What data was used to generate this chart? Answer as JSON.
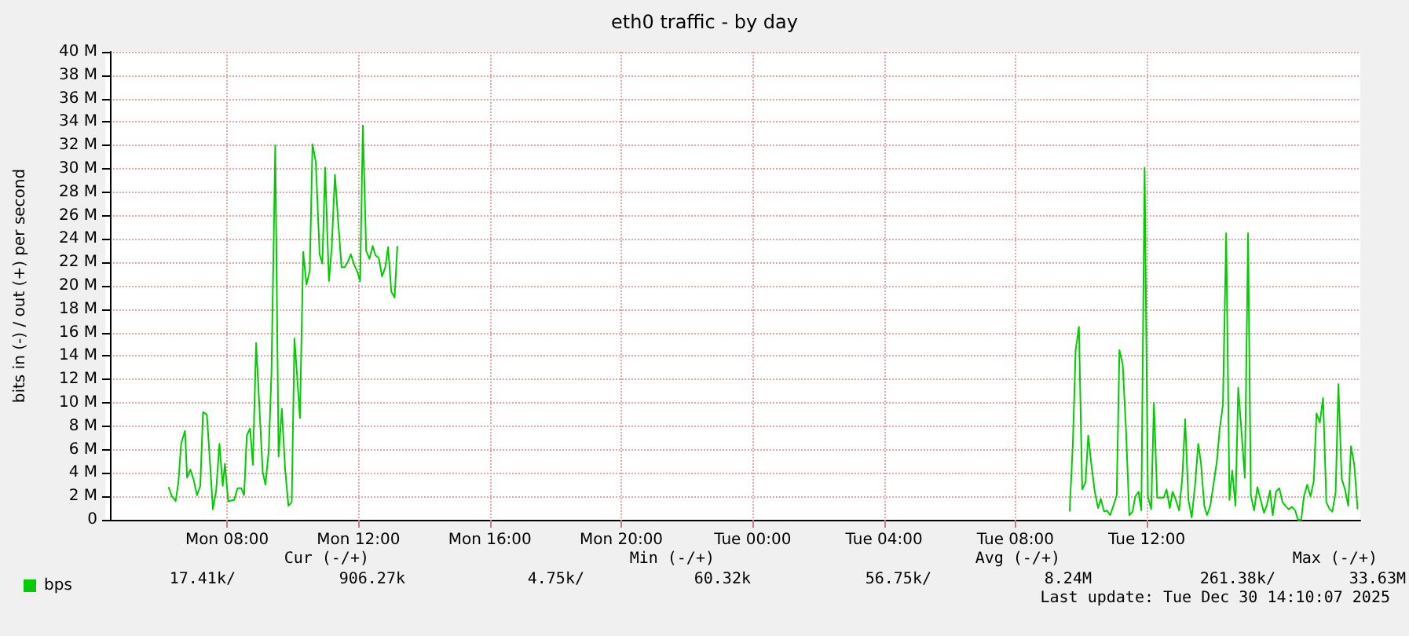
{
  "chart_data": {
    "type": "line",
    "title": "eth0 traffic - by day",
    "ylabel": "bits in (-) / out (+) per second",
    "xlim": [
      "2025-12-29T04:26",
      "2025-12-30T18:30"
    ],
    "xticks": [
      {
        "value": "2025-12-29T08:00",
        "label": "Mon 08:00"
      },
      {
        "value": "2025-12-29T12:00",
        "label": "Mon 12:00"
      },
      {
        "value": "2025-12-29T16:00",
        "label": "Mon 16:00"
      },
      {
        "value": "2025-12-29T20:00",
        "label": "Mon 20:00"
      },
      {
        "value": "2025-12-30T00:00",
        "label": "Tue 00:00"
      },
      {
        "value": "2025-12-30T04:00",
        "label": "Tue 04:00"
      },
      {
        "value": "2025-12-30T08:00",
        "label": "Tue 08:00"
      },
      {
        "value": "2025-12-30T12:00",
        "label": "Tue 12:00"
      }
    ],
    "ylim": [
      0,
      40
    ],
    "yticks": [
      0,
      {
        "value": 2,
        "label": "2 M"
      },
      {
        "value": 4,
        "label": "4 M"
      },
      {
        "value": 6,
        "label": "6 M"
      },
      {
        "value": 8,
        "label": "8 M"
      },
      {
        "value": 10,
        "label": "10 M"
      },
      {
        "value": 12,
        "label": "12 M"
      },
      {
        "value": 14,
        "label": "14 M"
      },
      {
        "value": 16,
        "label": "16 M"
      },
      {
        "value": 18,
        "label": "18 M"
      },
      {
        "value": 20,
        "label": "20 M"
      },
      {
        "value": 22,
        "label": "22 M"
      },
      {
        "value": 24,
        "label": "24 M"
      },
      {
        "value": 26,
        "label": "26 M"
      },
      {
        "value": 28,
        "label": "28 M"
      },
      {
        "value": 30,
        "label": "30 M"
      },
      {
        "value": 32,
        "label": "32 M"
      },
      {
        "value": 34,
        "label": "34 M"
      },
      {
        "value": 36,
        "label": "36 M"
      },
      {
        "value": 38,
        "label": "38 M"
      },
      {
        "value": 40,
        "label": "40 M"
      }
    ],
    "grid": true,
    "legend": "bottom left",
    "marker": "none",
    "line_style": "solid",
    "series": [
      {
        "name": "bps",
        "color": "#00cc00",
        "x": [
          "2025-12-29T06:13",
          "2025-12-29T06:19",
          "2025-12-29T06:26",
          "2025-12-29T06:31",
          "2025-12-29T06:36",
          "2025-12-29T06:43",
          "2025-12-29T06:47",
          "2025-12-29T06:53",
          "2025-12-29T06:59",
          "2025-12-29T07:05",
          "2025-12-29T07:11",
          "2025-12-29T07:16",
          "2025-12-29T07:23",
          "2025-12-29T07:29",
          "2025-12-29T07:34",
          "2025-12-29T07:40",
          "2025-12-29T07:46",
          "2025-12-29T07:52",
          "2025-12-29T07:56",
          "2025-12-29T08:02",
          "2025-12-29T08:13",
          "2025-12-29T08:19",
          "2025-12-29T08:26",
          "2025-12-29T08:31",
          "2025-12-29T08:36",
          "2025-12-29T08:42",
          "2025-12-29T08:47",
          "2025-12-29T08:53",
          "2025-12-29T09:00",
          "2025-12-29T09:05",
          "2025-12-29T09:10",
          "2025-12-29T09:16",
          "2025-12-29T09:21",
          "2025-12-29T09:28",
          "2025-12-29T09:34",
          "2025-12-29T09:40",
          "2025-12-29T09:46",
          "2025-12-29T09:52",
          "2025-12-29T09:58",
          "2025-12-29T10:03",
          "2025-12-29T10:08",
          "2025-12-29T10:13",
          "2025-12-29T10:19",
          "2025-12-29T10:25",
          "2025-12-29T10:31",
          "2025-12-29T10:36",
          "2025-12-29T10:42",
          "2025-12-29T10:49",
          "2025-12-29T10:54",
          "2025-12-29T10:59",
          "2025-12-29T11:06",
          "2025-12-29T11:11",
          "2025-12-29T11:17",
          "2025-12-29T11:23",
          "2025-12-29T11:29",
          "2025-12-29T11:35",
          "2025-12-29T11:41",
          "2025-12-29T11:46",
          "2025-12-29T11:52",
          "2025-12-29T11:58",
          "2025-12-29T12:03",
          "2025-12-29T12:08",
          "2025-12-29T12:14",
          "2025-12-29T12:20",
          "2025-12-29T12:26",
          "2025-12-29T12:31",
          "2025-12-29T12:37",
          "2025-12-29T12:43",
          "2025-12-29T12:49",
          "2025-12-29T12:54",
          "2025-12-29T13:00",
          "2025-12-29T13:06",
          "2025-12-29T13:11",
          "2025-12-29T20:00",
          "2025-12-30T09:39",
          "2025-12-30T09:45",
          "2025-12-30T09:50",
          "2025-12-30T09:56",
          "2025-12-30T10:02",
          "2025-12-30T10:08",
          "2025-12-30T10:13",
          "2025-12-30T10:19",
          "2025-12-30T10:25",
          "2025-12-30T10:31",
          "2025-12-30T10:36",
          "2025-12-30T10:42",
          "2025-12-30T10:47",
          "2025-12-30T10:53",
          "2025-12-30T10:59",
          "2025-12-30T11:05",
          "2025-12-30T11:10",
          "2025-12-30T11:16",
          "2025-12-30T11:22",
          "2025-12-30T11:28",
          "2025-12-30T11:34",
          "2025-12-30T11:39",
          "2025-12-30T11:45",
          "2025-12-30T11:50",
          "2025-12-30T11:56",
          "2025-12-30T12:02",
          "2025-12-30T12:08",
          "2025-12-30T12:13",
          "2025-12-30T12:19",
          "2025-12-30T12:31",
          "2025-12-30T12:36",
          "2025-12-30T12:42",
          "2025-12-30T12:47",
          "2025-12-30T12:53",
          "2025-12-30T12:59",
          "2025-12-30T13:05",
          "2025-12-30T13:10",
          "2025-12-30T13:16",
          "2025-12-30T13:22",
          "2025-12-30T13:28",
          "2025-12-30T13:34",
          "2025-12-30T13:39",
          "2025-12-30T13:45",
          "2025-12-30T13:50",
          "2025-12-30T13:56",
          "2025-12-30T14:08",
          "2025-12-30T14:13",
          "2025-12-30T14:19",
          "2025-12-30T14:25",
          "2025-12-30T14:31",
          "2025-12-30T14:36",
          "2025-12-30T14:42",
          "2025-12-30T14:47",
          "2025-12-30T14:53",
          "2025-12-30T14:59",
          "2025-12-30T15:05",
          "2025-12-30T15:10",
          "2025-12-30T15:16",
          "2025-12-30T15:22",
          "2025-12-30T15:28",
          "2025-12-30T15:34",
          "2025-12-30T15:39",
          "2025-12-30T15:45",
          "2025-12-30T15:50",
          "2025-12-30T15:56",
          "2025-12-30T16:02",
          "2025-12-30T16:08",
          "2025-12-30T16:13",
          "2025-12-30T16:19",
          "2025-12-30T16:25",
          "2025-12-30T16:31",
          "2025-12-30T16:36",
          "2025-12-30T16:42",
          "2025-12-30T16:47",
          "2025-12-30T16:53",
          "2025-12-30T16:59",
          "2025-12-30T17:05",
          "2025-12-30T17:10",
          "2025-12-30T17:16",
          "2025-12-30T17:22",
          "2025-12-30T17:28",
          "2025-12-30T17:34",
          "2025-12-30T17:39",
          "2025-12-30T17:45",
          "2025-12-30T17:50",
          "2025-12-30T17:56",
          "2025-12-30T18:02",
          "2025-12-30T18:08",
          "2025-12-30T18:13",
          "2025-12-30T18:19",
          "2025-12-30T18:25"
        ],
        "values": [
          2.8,
          2.0,
          1.6,
          3.2,
          6.5,
          7.6,
          3.6,
          4.3,
          3.4,
          2.1,
          2.9,
          9.2,
          9.0,
          4.7,
          0.9,
          2.5,
          6.5,
          2.9,
          4.8,
          1.6,
          1.7,
          2.7,
          2.7,
          2.1,
          7.2,
          7.8,
          4.7,
          15.1,
          8.7,
          4.1,
          3.0,
          5.9,
          12.5,
          32.0,
          5.4,
          9.5,
          4.3,
          1.2,
          1.5,
          15.5,
          12.2,
          8.7,
          22.9,
          20.1,
          21.3,
          32.1,
          30.6,
          22.7,
          21.9,
          30.1,
          20.4,
          23.2,
          29.5,
          25.4,
          21.6,
          21.6,
          22.1,
          22.7,
          21.8,
          21.2,
          20.4,
          33.7,
          23.0,
          22.3,
          23.4,
          22.6,
          22.4,
          20.8,
          21.6,
          23.3,
          19.5,
          19.0,
          23.4,
          null,
          0.7,
          6.6,
          14.5,
          16.5,
          2.6,
          3.2,
          7.2,
          4.6,
          2.4,
          1.0,
          1.8,
          0.7,
          0.8,
          0.4,
          1.2,
          2.1,
          14.5,
          13.3,
          7.7,
          0.4,
          0.7,
          2.0,
          2.4,
          0.8,
          30.1,
          2.0,
          0.9,
          10.0,
          1.9,
          1.9,
          2.6,
          1.0,
          2.4,
          1.7,
          0.8,
          3.7,
          8.6,
          1.7,
          0.2,
          2.9,
          6.5,
          4.8,
          1.2,
          0.4,
          1.2,
          5.0,
          7.7,
          9.8,
          24.5,
          1.7,
          4.2,
          1.2,
          11.3,
          7.5,
          3.6,
          24.5,
          2.1,
          0.8,
          2.8,
          1.7,
          0.6,
          1.2,
          2.5,
          0.4,
          2.4,
          2.7,
          1.5,
          1.2,
          0.9,
          1.1,
          0.8,
          0.0,
          0.0,
          2.0,
          3.0,
          2.0,
          3.3,
          9.1,
          8.3,
          10.4,
          1.5,
          0.9,
          0.7,
          2.4,
          11.6,
          3.5,
          2.6,
          1.2,
          6.3,
          4.7,
          0.9
        ]
      }
    ],
    "annotations": [
      "Cur (-/+)",
      "Min (-/+)",
      "Avg (-/+)",
      "Max (-/+)",
      "17.41k/",
      "906.27k",
      "4.75k/",
      "60.32k",
      "56.75k/",
      "8.24M",
      "261.38k/",
      "33.63M",
      "Last update: Tue Dec 30 14:10:07 2025"
    ]
  }
}
